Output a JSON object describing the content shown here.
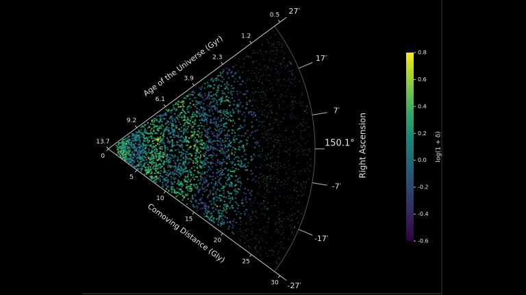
{
  "chart_data": {
    "type": "wedge",
    "age_axis_label": "Age of the Universe (Gyr)",
    "distance_axis_label": "Comoving Distance (Gly)",
    "angle_axis_label": "Right Ascension",
    "ra_center": "150.1°",
    "distance_lim": [
      0,
      30
    ],
    "distance_ticks": [
      0,
      5,
      10,
      15,
      20,
      25,
      30
    ],
    "age_ticks": [
      13.7,
      9.2,
      6.1,
      3.9,
      2.3,
      1.2,
      0.5
    ],
    "ra_lim": [
      -27,
      27
    ],
    "ra_ticks": [
      {
        "value": 27,
        "label": "27′"
      },
      {
        "value": 17,
        "label": "17′"
      },
      {
        "value": 7,
        "label": "7′"
      },
      {
        "value": -7,
        "label": "-7′"
      },
      {
        "value": -17,
        "label": "-17′"
      },
      {
        "value": -27,
        "label": "-27′"
      }
    ],
    "colorbar": {
      "label": "log(1 + δ)",
      "colormap": "viridis",
      "lim": [
        -0.6,
        0.8
      ],
      "ticks": [
        0.8,
        0.6,
        0.4,
        0.2,
        {
          "value": 0,
          "label": "0.0"
        },
        -0.2,
        -0.4,
        -0.6
      ]
    }
  }
}
